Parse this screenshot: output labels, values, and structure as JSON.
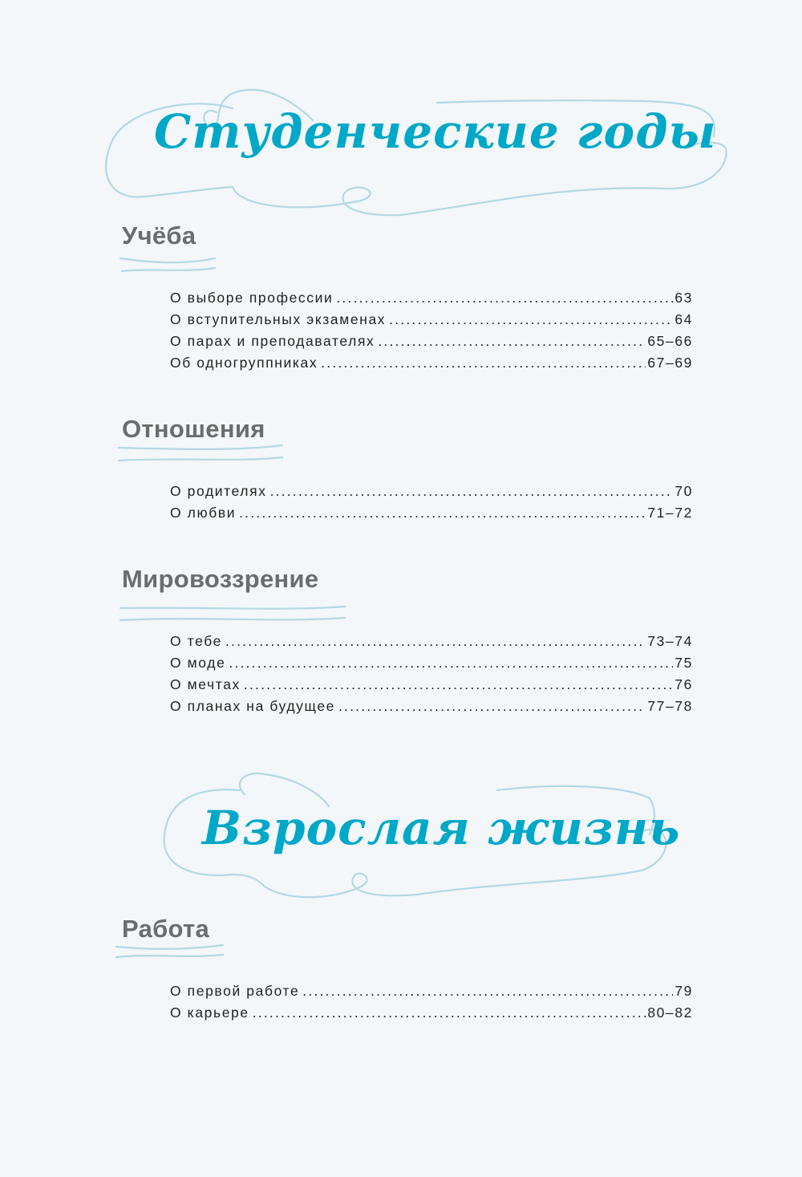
{
  "colors": {
    "title": "#00a8c8",
    "heading": "#6b6c6e",
    "swirl": "#b3d8e4",
    "background": "#f3f7fa"
  },
  "sections": [
    {
      "title": "Студенческие годы",
      "groups": [
        {
          "heading": "Учёба",
          "entries": [
            {
              "label": "О выборе профессии",
              "page": "63"
            },
            {
              "label": "О вступительных экзаменах",
              "page": "64"
            },
            {
              "label": "О парах и преподавателях",
              "page": "65–66"
            },
            {
              "label": "Об одногруппниках",
              "page": "67–69"
            }
          ]
        },
        {
          "heading": "Отношения",
          "entries": [
            {
              "label": "О родителях",
              "page": "70"
            },
            {
              "label": "О любви",
              "page": "71–72"
            }
          ]
        },
        {
          "heading": "Мировоззрение",
          "entries": [
            {
              "label": "О тебе",
              "page": "73–74"
            },
            {
              "label": "О моде",
              "page": "75"
            },
            {
              "label": "О мечтах",
              "page": "76"
            },
            {
              "label": "О планах на будущее",
              "page": "77–78"
            }
          ]
        }
      ]
    },
    {
      "title": "Взрослая жизнь",
      "groups": [
        {
          "heading": "Работа",
          "entries": [
            {
              "label": "О первой работе",
              "page": "79"
            },
            {
              "label": "О карьере",
              "page": "80–82"
            }
          ]
        }
      ]
    }
  ]
}
